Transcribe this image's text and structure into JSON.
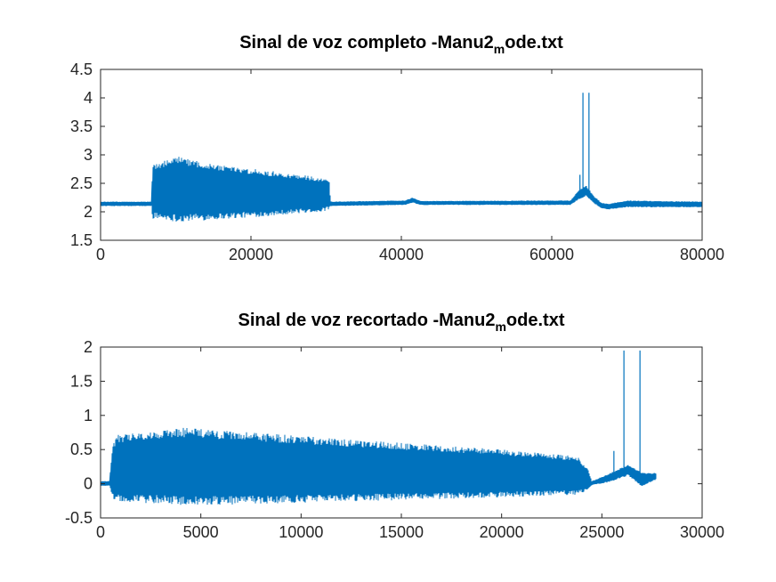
{
  "chart_data": [
    {
      "type": "line",
      "title": {
        "main": "Sinal de voz completo -Manu2",
        "sub": "m",
        "tail": "ode.txt"
      },
      "xlim": [
        0,
        80000
      ],
      "ylim": [
        1.5,
        4.5
      ],
      "xticks": [
        0,
        20000,
        40000,
        60000,
        80000
      ],
      "xtick_labels": [
        "0",
        "20000",
        "40000",
        "60000",
        "80000"
      ],
      "yticks": [
        1.5,
        2,
        2.5,
        3,
        3.5,
        4,
        4.5
      ],
      "ytick_labels": [
        "1.5",
        "2",
        "2.5",
        "3",
        "3.5",
        "4",
        "4.5"
      ],
      "grid": false,
      "series": [
        {
          "color": "#0072BD",
          "n_samples": 79900,
          "baseline": 2.14,
          "envelope": [
            {
              "x": 0,
              "lo": 2.1,
              "hi": 2.18
            },
            {
              "x": 6800,
              "lo": 2.1,
              "hi": 2.18
            },
            {
              "x": 6900,
              "lo": 1.88,
              "hi": 2.86
            },
            {
              "x": 10500,
              "lo": 1.82,
              "hi": 2.97
            },
            {
              "x": 15000,
              "lo": 1.86,
              "hi": 2.85
            },
            {
              "x": 20000,
              "lo": 1.9,
              "hi": 2.76
            },
            {
              "x": 25000,
              "lo": 1.96,
              "hi": 2.68
            },
            {
              "x": 29500,
              "lo": 2.0,
              "hi": 2.6
            },
            {
              "x": 30400,
              "lo": 2.04,
              "hi": 2.55
            },
            {
              "x": 30600,
              "lo": 2.1,
              "hi": 2.18
            },
            {
              "x": 40500,
              "lo": 2.12,
              "hi": 2.2
            },
            {
              "x": 41500,
              "lo": 2.16,
              "hi": 2.25
            },
            {
              "x": 42500,
              "lo": 2.12,
              "hi": 2.19
            },
            {
              "x": 62500,
              "lo": 2.12,
              "hi": 2.2
            },
            {
              "x": 63600,
              "lo": 2.22,
              "hi": 2.38
            },
            {
              "x": 64600,
              "lo": 2.28,
              "hi": 2.46
            },
            {
              "x": 65600,
              "lo": 2.15,
              "hi": 2.28
            },
            {
              "x": 66600,
              "lo": 2.06,
              "hi": 2.16
            },
            {
              "x": 67500,
              "lo": 2.04,
              "hi": 2.14
            },
            {
              "x": 70000,
              "lo": 2.08,
              "hi": 2.2
            },
            {
              "x": 79900,
              "lo": 2.08,
              "hi": 2.18
            }
          ],
          "spikes": [
            {
              "x": 63750,
              "y": 2.65
            },
            {
              "x": 64150,
              "y": 4.09
            },
            {
              "x": 64950,
              "y": 4.09
            }
          ]
        }
      ]
    },
    {
      "type": "line",
      "title": {
        "main": "Sinal de voz recortado -Manu2",
        "sub": "m",
        "tail": "ode.txt"
      },
      "xlim": [
        0,
        30000
      ],
      "ylim": [
        -0.5,
        2
      ],
      "xticks": [
        0,
        5000,
        10000,
        15000,
        20000,
        25000,
        30000
      ],
      "xtick_labels": [
        "0",
        "5000",
        "10000",
        "15000",
        "20000",
        "25000",
        "30000"
      ],
      "yticks": [
        -0.5,
        0,
        0.5,
        1,
        1.5,
        2
      ],
      "ytick_labels": [
        "-0.5",
        "0",
        "0.5",
        "1",
        "1.5",
        "2"
      ],
      "grid": false,
      "series": [
        {
          "color": "#0072BD",
          "n_samples": 27700,
          "baseline": 0.0,
          "envelope": [
            {
              "x": 0,
              "lo": -0.03,
              "hi": 0.04
            },
            {
              "x": 450,
              "lo": -0.03,
              "hi": 0.04
            },
            {
              "x": 600,
              "lo": -0.22,
              "hi": 0.6
            },
            {
              "x": 900,
              "lo": -0.26,
              "hi": 0.72
            },
            {
              "x": 4200,
              "lo": -0.32,
              "hi": 0.82
            },
            {
              "x": 10000,
              "lo": -0.28,
              "hi": 0.7
            },
            {
              "x": 15000,
              "lo": -0.24,
              "hi": 0.6
            },
            {
              "x": 20000,
              "lo": -0.2,
              "hi": 0.5
            },
            {
              "x": 23800,
              "lo": -0.16,
              "hi": 0.4
            },
            {
              "x": 24300,
              "lo": -0.1,
              "hi": 0.22
            },
            {
              "x": 24500,
              "lo": -0.02,
              "hi": 0.04
            },
            {
              "x": 25300,
              "lo": 0.02,
              "hi": 0.14
            },
            {
              "x": 26300,
              "lo": 0.12,
              "hi": 0.28
            },
            {
              "x": 27000,
              "lo": -0.04,
              "hi": 0.16
            },
            {
              "x": 27700,
              "lo": 0.06,
              "hi": 0.16
            }
          ],
          "spikes": [
            {
              "x": 25600,
              "y": 0.48
            },
            {
              "x": 26100,
              "y": 1.95
            },
            {
              "x": 26900,
              "y": 1.95
            }
          ]
        }
      ]
    }
  ]
}
